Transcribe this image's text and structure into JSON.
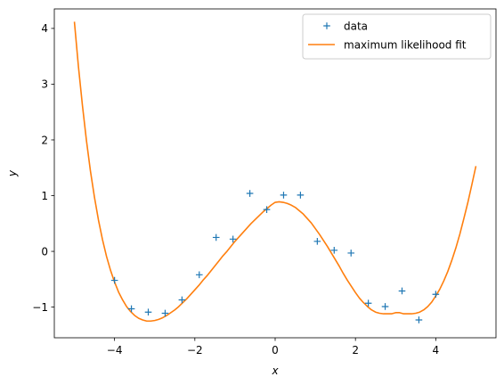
{
  "chart_data": {
    "type": "scatter",
    "xlabel": "x",
    "ylabel": "y",
    "xlim": [
      -5.5,
      5.5
    ],
    "ylim": [
      -1.55,
      4.35
    ],
    "xticks": [
      -4,
      -2,
      0,
      2,
      4
    ],
    "yticks": [
      -1,
      0,
      1,
      2,
      3,
      4
    ],
    "xtick_labels": [
      "−4",
      "−2",
      "0",
      "2",
      "4"
    ],
    "ytick_labels": [
      "−1",
      "0",
      "1",
      "2",
      "3",
      "4"
    ],
    "grid": false,
    "legend_position": "top-right",
    "series": [
      {
        "name": "data",
        "kind": "scatter",
        "marker": "plus",
        "color": "#1f77b4",
        "x": [
          -4.0,
          -3.58,
          -3.16,
          -2.74,
          -2.32,
          -1.89,
          -1.47,
          -1.05,
          -0.63,
          -0.21,
          0.21,
          0.63,
          1.05,
          1.47,
          1.89,
          2.32,
          2.74,
          3.16,
          3.58,
          4.0
        ],
        "y": [
          -0.52,
          -1.03,
          -1.09,
          -1.11,
          -0.87,
          -0.42,
          0.25,
          0.22,
          1.04,
          0.75,
          1.01,
          1.01,
          0.18,
          0.02,
          -0.03,
          -0.93,
          -0.99,
          -0.71,
          -1.23,
          -0.77
        ]
      },
      {
        "name": "maximum likelihood fit",
        "kind": "line",
        "color": "#ff7f0e",
        "x": [
          -5.0,
          -4.9,
          -4.8,
          -4.7,
          -4.6,
          -4.5,
          -4.4,
          -4.3,
          -4.2,
          -4.1,
          -4.0,
          -3.9,
          -3.8,
          -3.7,
          -3.6,
          -3.5,
          -3.4,
          -3.3,
          -3.2,
          -3.1,
          -3.0,
          -2.9,
          -2.8,
          -2.7,
          -2.6,
          -2.5,
          -2.4,
          -2.3,
          -2.2,
          -2.1,
          -2.0,
          -1.9,
          -1.8,
          -1.7,
          -1.6,
          -1.5,
          -1.4,
          -1.3,
          -1.2,
          -1.1,
          -1.0,
          -0.9,
          -0.8,
          -0.7,
          -0.6,
          -0.5,
          -0.4,
          -0.3,
          -0.2,
          -0.1,
          0.0,
          0.1,
          0.2,
          0.3,
          0.4,
          0.5,
          0.6,
          0.7,
          0.8,
          0.9,
          1.0,
          1.1,
          1.2,
          1.3,
          1.4,
          1.5,
          1.6,
          1.7,
          1.8,
          1.9,
          2.0,
          2.1,
          2.2,
          2.3,
          2.4,
          2.5,
          2.6,
          2.7,
          2.8,
          2.9,
          3.0,
          3.1,
          3.2,
          3.3,
          3.4,
          3.5,
          3.6,
          3.7,
          3.8,
          3.9,
          4.0,
          4.1,
          4.2,
          4.3,
          4.4,
          4.5,
          4.6,
          4.7,
          4.8,
          4.9,
          5.0
        ],
        "y": [
          4.12,
          3.32,
          2.62,
          1.99,
          1.44,
          0.97,
          0.56,
          0.21,
          -0.09,
          -0.34,
          -0.55,
          -0.73,
          -0.87,
          -0.99,
          -1.08,
          -1.15,
          -1.2,
          -1.23,
          -1.25,
          -1.25,
          -1.24,
          -1.22,
          -1.19,
          -1.15,
          -1.1,
          -1.05,
          -0.99,
          -0.92,
          -0.85,
          -0.77,
          -0.69,
          -0.61,
          -0.52,
          -0.44,
          -0.35,
          -0.26,
          -0.17,
          -0.08,
          0.0,
          0.09,
          0.18,
          0.26,
          0.34,
          0.42,
          0.5,
          0.57,
          0.64,
          0.71,
          0.77,
          0.83,
          0.88,
          0.89,
          0.88,
          0.86,
          0.83,
          0.79,
          0.73,
          0.67,
          0.59,
          0.51,
          0.41,
          0.31,
          0.2,
          0.09,
          -0.03,
          -0.15,
          -0.27,
          -0.4,
          -0.52,
          -0.63,
          -0.74,
          -0.84,
          -0.92,
          -0.99,
          -1.05,
          -1.09,
          -1.11,
          -1.12,
          -1.12,
          -1.12,
          -1.1,
          -1.1,
          -1.12,
          -1.12,
          -1.12,
          -1.11,
          -1.09,
          -1.05,
          -0.99,
          -0.91,
          -0.8,
          -0.68,
          -0.53,
          -0.36,
          -0.16,
          0.06,
          0.31,
          0.59,
          0.88,
          1.2,
          1.53
        ]
      }
    ]
  }
}
